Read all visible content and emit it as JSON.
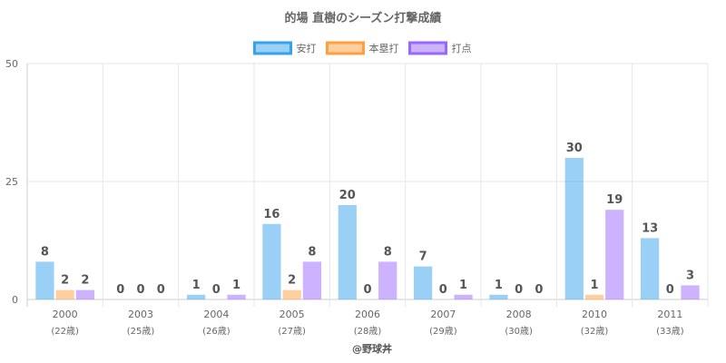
{
  "chart_data": {
    "type": "bar",
    "title": "的場 直樹のシーズン打撃成績",
    "categories": [
      "2000",
      "2003",
      "2004",
      "2005",
      "2006",
      "2007",
      "2008",
      "2010",
      "2011"
    ],
    "category_sublabels": [
      "(22歳)",
      "(25歳)",
      "(26歳)",
      "(27歳)",
      "(28歳)",
      "(29歳)",
      "(30歳)",
      "(32歳)",
      "(33歳)"
    ],
    "series": [
      {
        "name": "安打",
        "values": [
          8,
          0,
          1,
          16,
          20,
          7,
          1,
          30,
          13
        ],
        "color": "#36a2eb"
      },
      {
        "name": "本塁打",
        "values": [
          2,
          0,
          0,
          2,
          0,
          0,
          0,
          1,
          0
        ],
        "color": "#ff9f40"
      },
      {
        "name": "打点",
        "values": [
          2,
          0,
          1,
          8,
          8,
          1,
          0,
          19,
          3
        ],
        "color": "#9966ff"
      }
    ],
    "ylim": [
      0,
      50
    ],
    "yticks": [
      0,
      25,
      50
    ],
    "grid": true,
    "legend": "top-center",
    "credit": "@野球丼"
  }
}
